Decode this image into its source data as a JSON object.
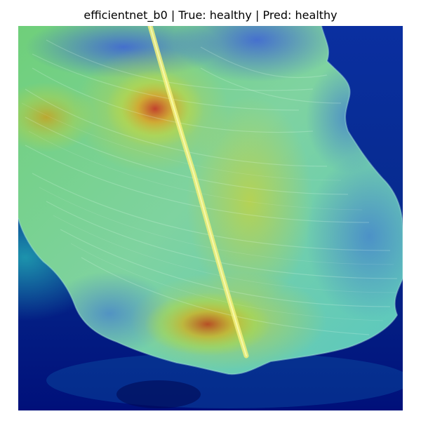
{
  "figure": {
    "title": "efficientnet_b0 | True: healthy | Pred: healthy"
  },
  "image": {
    "subject": "banana leaf",
    "overlay": "grad-cam heatmap",
    "colormap": "jet"
  }
}
